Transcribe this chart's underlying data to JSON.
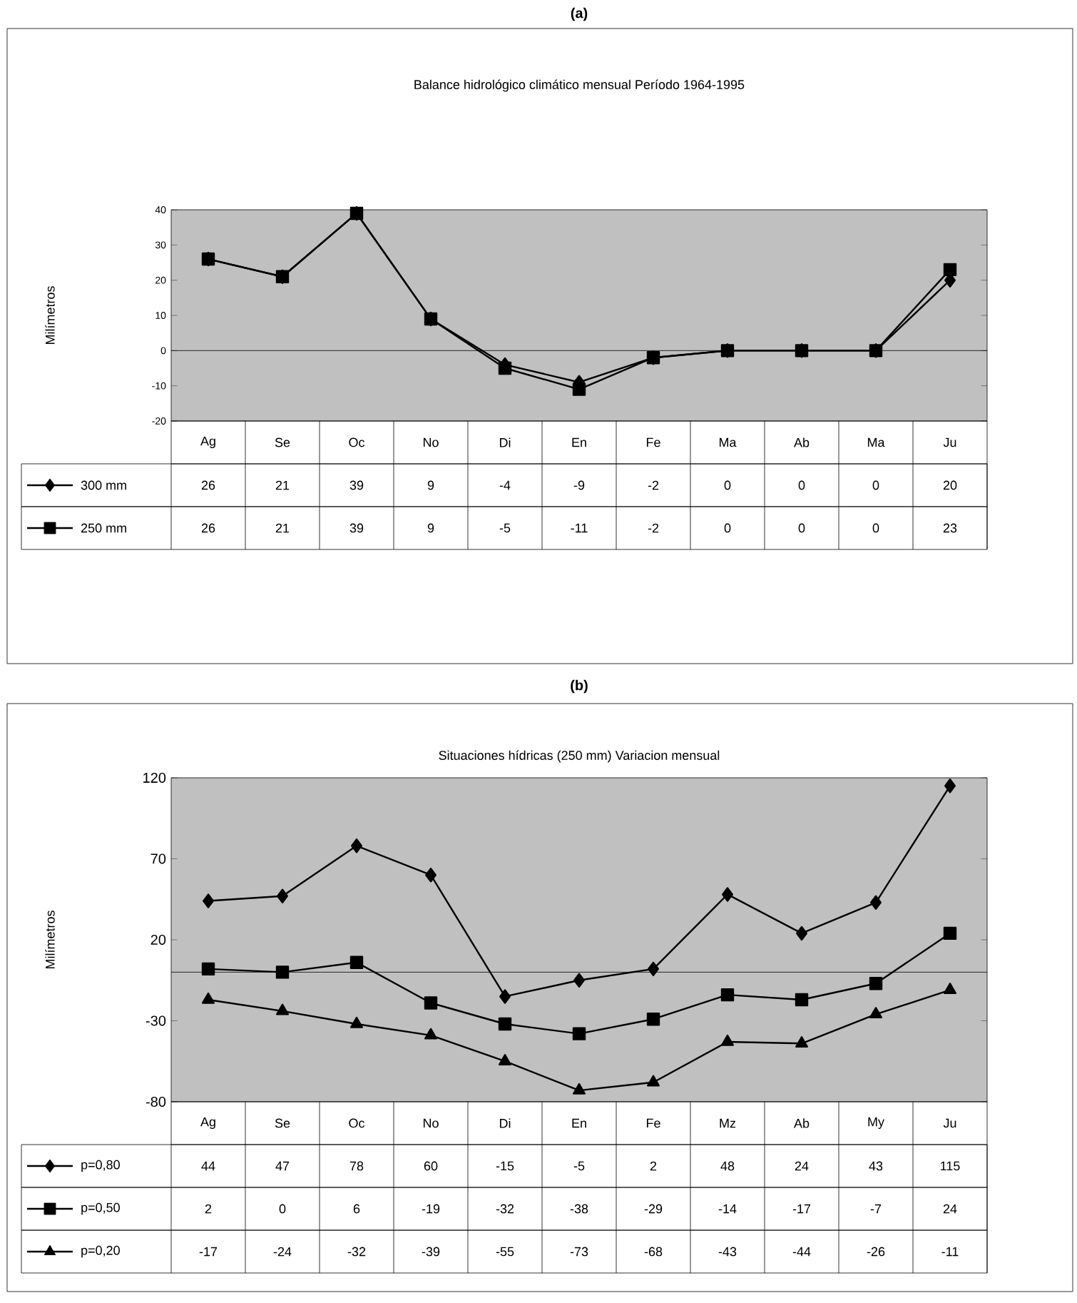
{
  "chart_data": [
    {
      "type": "line",
      "title": "**(a)**",
      "subtitle": "Balance hidrológico climático mensual  Período 1964-1995",
      "ylabel": "Milímetros",
      "categories": [
        "Ag",
        "Se",
        "Oc",
        "No",
        "Di",
        "En",
        "Fe",
        "Ma",
        "Ab",
        "Ma",
        "Ju"
      ],
      "series": [
        {
          "name": "300 mm",
          "color": "#000000",
          "marker": "diamond",
          "values": [
            26,
            21,
            39,
            9,
            -4,
            -9,
            -2,
            0,
            0,
            0,
            20
          ]
        },
        {
          "name": "250 mm",
          "color": "#000000",
          "marker": "square",
          "values": [
            26,
            21,
            39,
            9,
            -5,
            -11,
            -2,
            0,
            0,
            0,
            23
          ]
        }
      ],
      "ylim": [
        -20,
        40
      ],
      "yticks": [
        -20,
        -10,
        0,
        10,
        20,
        30,
        40
      ],
      "ref_lines": [
        {
          "axis": "y",
          "value": 0
        }
      ],
      "data_labels": true,
      "legend": "bottom left",
      "grid": false
    },
    {
      "type": "line",
      "title": "**(b)**",
      "subtitle": "Situaciones hídricas (250 mm) Variacion mensual",
      "ylabel": "Milímetros",
      "categories": [
        "Ag",
        "Se",
        "Oc",
        "No",
        "Di",
        "En",
        "Fe",
        "Mz",
        "Ab",
        "My",
        "Ju"
      ],
      "series": [
        {
          "name": "p=0,80",
          "color": "#000000",
          "marker": "diamond",
          "values": [
            44,
            47,
            78,
            60,
            -15,
            -5,
            2,
            48,
            24,
            43,
            115
          ]
        },
        {
          "name": "p=0,50",
          "color": "#000000",
          "marker": "square",
          "values": [
            2,
            0,
            6,
            -19,
            -32,
            -38,
            -29,
            -14,
            -17,
            -7,
            24
          ]
        },
        {
          "name": "p=0,20",
          "color": "#000000",
          "marker": "triangle",
          "values": [
            -17,
            -24,
            -32,
            -39,
            -55,
            -73,
            -68,
            -43,
            -44,
            -26,
            -11
          ]
        }
      ],
      "ylim": [
        -80,
        120
      ],
      "yticks": [
        -80,
        -30,
        20,
        70,
        120
      ],
      "ref_lines": [
        {
          "axis": "y",
          "value": 0
        }
      ],
      "data_labels": true,
      "legend": "bottom left",
      "grid": false
    }
  ]
}
